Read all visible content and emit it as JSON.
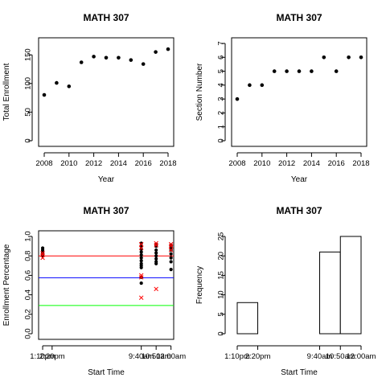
{
  "chart_data": [
    {
      "type": "scatter",
      "title": "MATH 307",
      "xlabel": "Year",
      "ylabel": "Total Enrollment",
      "xlim": [
        2008,
        2018
      ],
      "ylim": [
        0,
        170
      ],
      "xticks": [
        "2008",
        "2010",
        "2012",
        "2014",
        "2016",
        "2018"
      ],
      "yticks": [
        "0",
        "50",
        "100",
        "150"
      ],
      "x": [
        2008,
        2009,
        2010,
        2011,
        2012,
        2013,
        2014,
        2015,
        2016,
        2017,
        2018
      ],
      "y": [
        80,
        101,
        95,
        137,
        147,
        145,
        145,
        141,
        134,
        155,
        160
      ]
    },
    {
      "type": "scatter",
      "title": "MATH 307",
      "xlabel": "Year",
      "ylabel": "Section Number",
      "xlim": [
        2008,
        2018
      ],
      "ylim": [
        0,
        7
      ],
      "xticks": [
        "2008",
        "2010",
        "2012",
        "2014",
        "2016",
        "2018"
      ],
      "yticks": [
        "0",
        "1",
        "2",
        "3",
        "4",
        "5",
        "6",
        "7"
      ],
      "x": [
        2008,
        2009,
        2010,
        2011,
        2012,
        2013,
        2014,
        2015,
        2016,
        2017,
        2018
      ],
      "y": [
        3,
        4,
        4,
        5,
        5,
        5,
        5,
        6,
        5,
        6,
        6
      ]
    },
    {
      "type": "scatter",
      "title": "MATH 307",
      "xlabel": "Start Time",
      "ylabel": "Enrollment Percentage",
      "ylim": [
        0,
        1.0
      ],
      "yticks": [
        "0.0",
        "0.2",
        "0.4",
        "0.6",
        "0.8",
        "1.0"
      ],
      "x_tick_labels": [
        "1:10pm",
        "2:20pm",
        "9:40am",
        "10:50am",
        "12:00am"
      ],
      "x_tick_values": [
        13.17,
        14.33,
        9.67,
        10.83,
        12.0
      ],
      "x_order": [
        13.17,
        14.33,
        9.67,
        10.83,
        12.0
      ],
      "black_points": {
        "x": [
          13.17,
          13.17,
          13.17,
          13.17,
          13.17,
          9.67,
          9.67,
          9.67,
          9.67,
          9.67,
          9.67,
          9.67,
          9.67,
          9.67,
          9.67,
          9.67,
          9.67,
          10.83,
          10.83,
          10.83,
          10.83,
          10.83,
          10.83,
          10.83,
          10.83,
          12.0,
          12.0,
          12.0,
          12.0,
          12.0,
          12.0,
          12.0
        ],
        "y": [
          0.88,
          0.86,
          0.84,
          0.82,
          0.8,
          0.93,
          0.9,
          0.87,
          0.84,
          0.81,
          0.78,
          0.75,
          0.72,
          0.7,
          0.68,
          0.58,
          0.52,
          0.92,
          0.9,
          0.86,
          0.83,
          0.8,
          0.77,
          0.74,
          0.72,
          0.91,
          0.89,
          0.86,
          0.82,
          0.78,
          0.74,
          0.66
        ]
      },
      "red_points": {
        "x": [
          13.17,
          13.17,
          13.17,
          9.67,
          9.67,
          9.67,
          9.67,
          9.67,
          10.83,
          10.83,
          10.83,
          12.0,
          12.0,
          12.0
        ],
        "y": [
          0.83,
          0.81,
          0.78,
          0.92,
          0.88,
          0.6,
          0.58,
          0.37,
          0.93,
          0.91,
          0.46,
          0.92,
          0.9,
          0.86
        ]
      },
      "hlines": [
        {
          "y": 0.8,
          "color": "#ff0000"
        },
        {
          "y": 0.575,
          "color": "#0000ff"
        },
        {
          "y": 0.29,
          "color": "#00ff00"
        }
      ]
    },
    {
      "type": "bar",
      "subtype": "histogram",
      "title": "MATH 307",
      "xlabel": "Start Time",
      "ylabel": "Frequency",
      "ylim": [
        0,
        25
      ],
      "yticks": [
        "0",
        "5",
        "10",
        "15",
        "20",
        "25"
      ],
      "x_tick_labels": [
        "1:10pm",
        "2:20pm",
        "9:40am",
        "10:50am",
        "12:00am"
      ],
      "x_tick_values": [
        13.17,
        14.33,
        9.67,
        10.83,
        12.0
      ],
      "bins": [
        {
          "from": 13.17,
          "to": 14.33,
          "count": 8
        },
        {
          "from": 14.33,
          "to": 15.5,
          "count": 0
        },
        {
          "from": 15.5,
          "to": 16.67,
          "count": 0
        },
        {
          "from": 16.67,
          "to": 17.83,
          "count": 0
        },
        {
          "from": 17.83,
          "to": 19.0,
          "count": 21
        },
        {
          "from": 19.0,
          "to": 20.17,
          "count": 25
        }
      ]
    }
  ]
}
